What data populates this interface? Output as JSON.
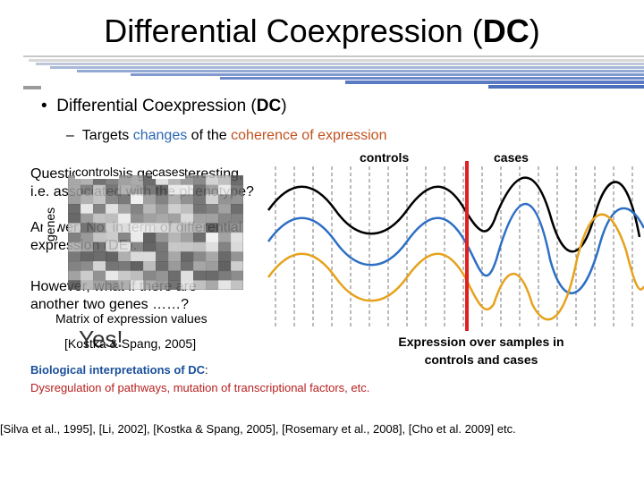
{
  "slide": {
    "title_main": "Differential Coexpression (",
    "title_abbr": "DC",
    "title_close": ")",
    "bullet1": {
      "text": "Differential Coexpression (",
      "abbr": "DC",
      "close": ")"
    },
    "bullet2": {
      "prefix": "Targets ",
      "highlight1": "changes",
      "middle": " of the ",
      "highlight2": "coherence of expression"
    },
    "question": {
      "line1": "Question: Is this gene interesting,",
      "line2": "i.e. associated with the phenotype?"
    },
    "answer": {
      "line1": "Answer: No, in term of differential",
      "line2": "expression (DE)."
    },
    "however": {
      "line1": "However, what if there are",
      "line2": "another two genes ……?"
    },
    "matrix": {
      "controls_label": "controls",
      "cases_label": "cases",
      "genes_label": "genes",
      "caption": "Matrix of expression values",
      "yes": "Yes!",
      "citation": "[Kostka & Spang, 2005]"
    },
    "curves": {
      "controls_label": "controls",
      "cases_label": "cases",
      "caption": "Expression over samples in controls and cases"
    },
    "bio": {
      "title_prefix": "Biological interpretations of ",
      "title_abbr": "DC",
      "title_suffix": ":",
      "body": "Dysregulation of pathways, mutation of transcriptional factors, etc."
    },
    "references": "[Silva et al., 1995], [Li, 2002], [Kostka & Spang, 2005], [Rosemary et al., 2008], [Cho et al. 2009] etc."
  },
  "colors": {
    "accent_blue": "#2a67b1",
    "accent_orange": "#c0521e",
    "divider_red": "#e02020",
    "curve_black": "#000000",
    "curve_blue": "#2e6fc4",
    "curve_gold": "#e6a21c"
  }
}
